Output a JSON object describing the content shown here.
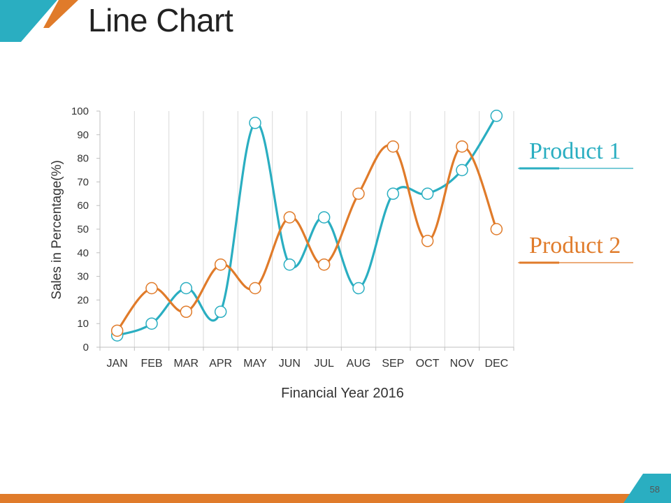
{
  "slide": {
    "title": "Line Chart",
    "page_number": "58",
    "colors": {
      "accent_teal": "#2aaec1",
      "accent_orange": "#e07b2a"
    }
  },
  "chart_data": {
    "type": "line",
    "categories": [
      "JAN",
      "FEB",
      "MAR",
      "APR",
      "MAY",
      "JUN",
      "JUL",
      "AUG",
      "SEP",
      "OCT",
      "NOV",
      "DEC"
    ],
    "series": [
      {
        "name": "Product 1",
        "color": "#2aaec1",
        "values": [
          5,
          10,
          25,
          15,
          95,
          35,
          55,
          25,
          65,
          65,
          75,
          98
        ]
      },
      {
        "name": "Product 2",
        "color": "#e07b2a",
        "values": [
          7,
          25,
          15,
          35,
          25,
          55,
          35,
          65,
          85,
          45,
          85,
          50
        ]
      }
    ],
    "xlabel": "Financial Year 2016",
    "ylabel": "Sales in Percentage(%)",
    "ylim": [
      0,
      100
    ],
    "yticks": [
      0,
      10,
      20,
      30,
      40,
      50,
      60,
      70,
      80,
      90,
      100
    ],
    "grid": "vertical",
    "legend": "right",
    "smooth": true
  }
}
